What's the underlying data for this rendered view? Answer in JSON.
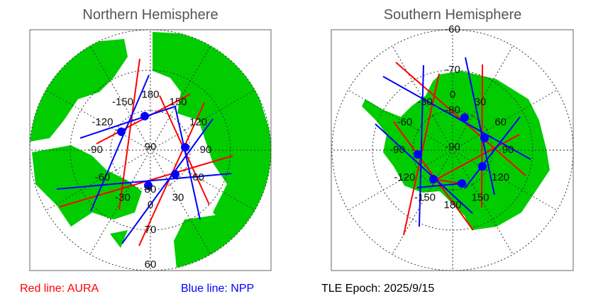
{
  "north": {
    "title": "Northern Hemisphere",
    "lon_labels": [
      "180",
      "150",
      "120",
      "90",
      "60",
      "30",
      "0",
      "-30",
      "-60",
      "-90",
      "-120",
      "-150"
    ],
    "lat_labels": [
      "90",
      "80",
      "70",
      "60"
    ]
  },
  "south": {
    "title": "Southern Hemisphere",
    "lon_labels": [
      "0",
      "30",
      "60",
      "90",
      "120",
      "150",
      "180",
      "-150",
      "-120",
      "-90",
      "-60",
      "-30"
    ],
    "lat_labels": [
      "-90",
      "-80",
      "-70",
      "-60"
    ]
  },
  "legend": {
    "red": "Red line: AURA",
    "blue": "Blue line: NPP",
    "epoch": "TLE Epoch: 2025/9/15"
  },
  "colors": {
    "land": "#00cc00",
    "aura": "#ff0000",
    "npp": "#0000ff",
    "grid": "#333333"
  }
}
